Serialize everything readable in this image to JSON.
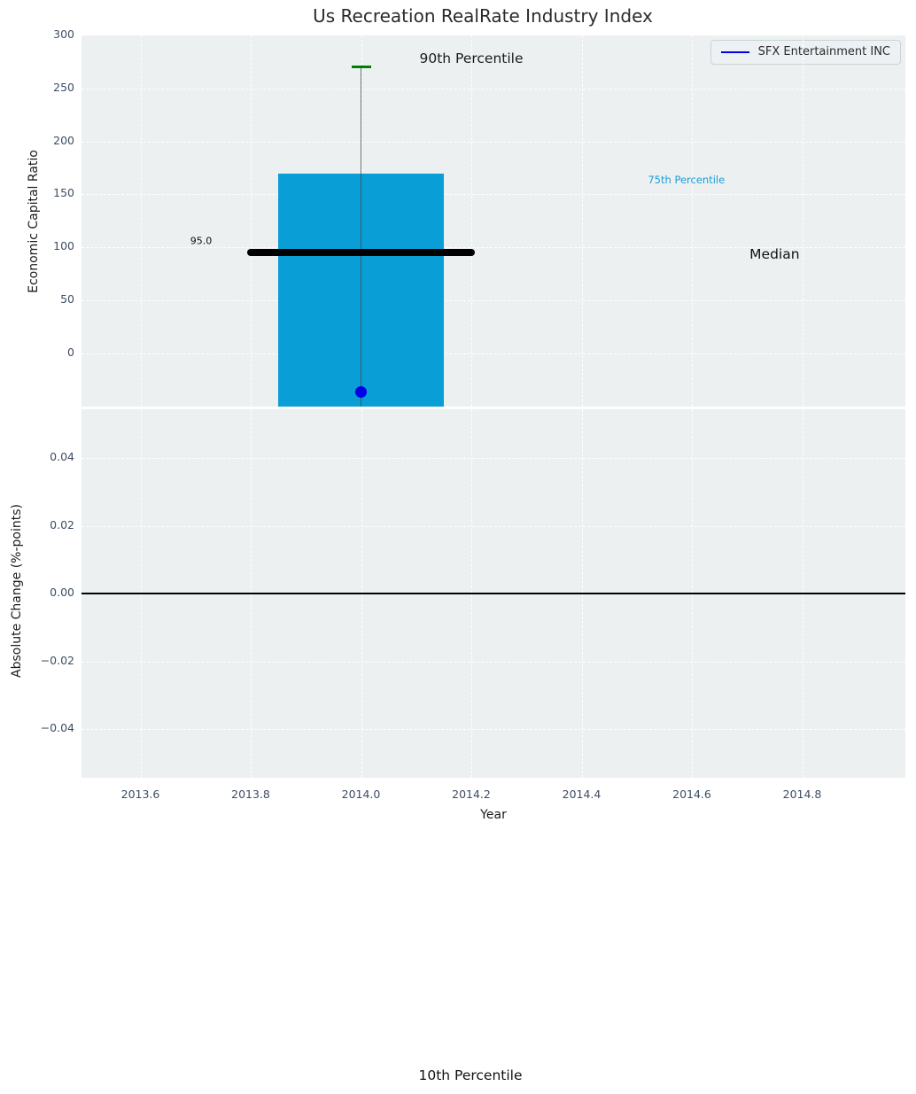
{
  "title": "Us Recreation RealRate Industry Index",
  "legend": {
    "label": "SFX Entertainment INC",
    "line_color": "#0000e8"
  },
  "axes": {
    "top": {
      "ylabel": "Economic Capital Ratio",
      "ytick_values": [
        0,
        50,
        100,
        150,
        200,
        250,
        300
      ],
      "ytick_labels": [
        "0",
        "50",
        "100",
        "150",
        "200",
        "250",
        "300"
      ],
      "ylim": [
        -51,
        300
      ]
    },
    "bottom": {
      "ylabel": "Absolute Change (%-points)",
      "ytick_values": [
        0.04,
        0.02,
        0.0,
        -0.02,
        -0.04
      ],
      "ytick_labels": [
        "0.04",
        "0.02",
        "0.00",
        "−0.02",
        "−0.04"
      ],
      "ylim": [
        -0.054,
        0.054
      ],
      "zero_line_value": 0.0
    },
    "x": {
      "label": "Year",
      "tick_values": [
        2013.6,
        2013.8,
        2014.0,
        2014.2,
        2014.4,
        2014.6,
        2014.8
      ],
      "tick_labels": [
        "2013.6",
        "2013.8",
        "2014.0",
        "2014.2",
        "2014.4",
        "2014.6",
        "2014.8"
      ],
      "lim": [
        2013.5,
        2014.99
      ]
    }
  },
  "chart_data": {
    "type": "bar",
    "subtype": "industry-percentile-distribution",
    "year": 2014.0,
    "bar_x_range": [
      2013.849,
      2014.151
    ],
    "percentile_90": 270,
    "percentile_75": 170,
    "median": 95.0,
    "median_label": "95.0",
    "median_x_range": [
      2013.8,
      2014.2
    ],
    "bar_bottom_clipped_at_axis": true,
    "company_point": {
      "name": "SFX Entertainment INC",
      "year": 2014.0,
      "value": -36
    },
    "colors": {
      "bar": "#0a9ed6",
      "p90_cap": "#008000",
      "median_line": "#000000",
      "company_point": "#0000e8",
      "whisker": "rgba(70,70,70,0.75)",
      "axes_bg": "#ecf0f1",
      "tick_label": "#3d4d63",
      "annotation_cyan": "#1e9cd8"
    },
    "annotations": [
      {
        "text": "90th Percentile",
        "year": 2014.2,
        "value": 278,
        "color": "#1c1c1c",
        "size": 15.5
      },
      {
        "text": "75th Percentile",
        "year": 2014.59,
        "value": 164,
        "color": "#1e9cd8",
        "size": 11.5
      },
      {
        "text": "Median",
        "year": 2014.75,
        "value": 94,
        "color": "#111111",
        "size": 15.5
      },
      {
        "text": "95.0",
        "year": 2013.71,
        "value": 106,
        "color": "#111111",
        "size": 11
      }
    ],
    "annotations_outside": [
      {
        "text": "10th Percentile"
      }
    ]
  }
}
